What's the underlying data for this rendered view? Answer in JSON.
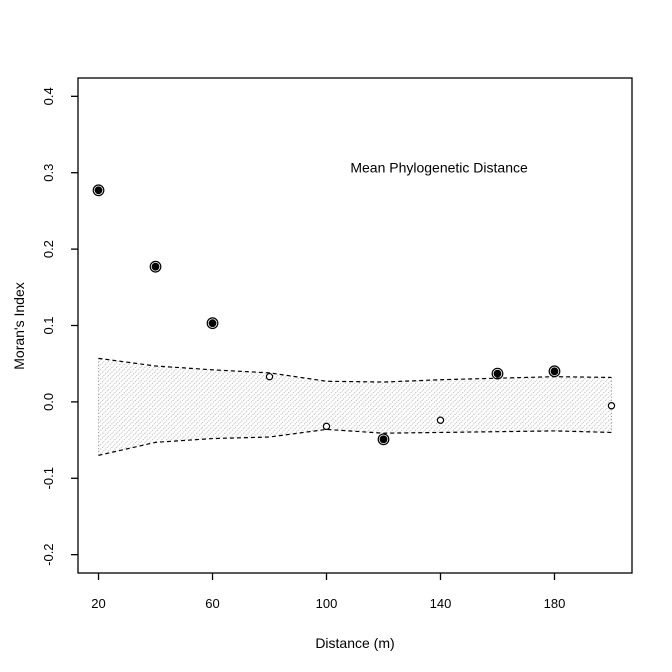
{
  "page": {
    "background": "#ffffff"
  },
  "chart_data": {
    "type": "scatter",
    "title": "Mean Phylogenetic Distance",
    "xlabel": "Distance (m)",
    "ylabel": "Moran's Index",
    "xlim": [
      12.8,
      207.2
    ],
    "ylim": [
      -0.224,
      0.424
    ],
    "x_ticks": [
      "20",
      "60",
      "100",
      "140",
      "180"
    ],
    "y_ticks": [
      "-0.2",
      "-0.1",
      "0.0",
      "0.1",
      "0.2",
      "0.3",
      "0.4"
    ],
    "grid": false,
    "legend": "none",
    "title_pos": {
      "x": 139.5,
      "y": 0.306
    },
    "colors": {
      "foreground": "#000000",
      "background": "#ffffff",
      "hatch": "#a0a0a0"
    },
    "points": [
      {
        "x": 20,
        "y": 0.277,
        "significant": true
      },
      {
        "x": 40,
        "y": 0.177,
        "significant": true
      },
      {
        "x": 60,
        "y": 0.103,
        "significant": true
      },
      {
        "x": 80,
        "y": 0.033,
        "significant": false
      },
      {
        "x": 100,
        "y": -0.032,
        "significant": false
      },
      {
        "x": 120,
        "y": -0.049,
        "significant": true
      },
      {
        "x": 140,
        "y": -0.024,
        "significant": false
      },
      {
        "x": 160,
        "y": 0.037,
        "significant": true
      },
      {
        "x": 180,
        "y": 0.04,
        "significant": true
      },
      {
        "x": 200,
        "y": -0.005,
        "significant": false
      }
    ],
    "envelope": {
      "x": [
        20,
        40,
        60,
        80,
        100,
        120,
        140,
        160,
        180,
        200
      ],
      "upper": [
        0.057,
        0.047,
        0.042,
        0.038,
        0.027,
        0.026,
        0.029,
        0.031,
        0.033,
        0.032
      ],
      "lower": [
        -0.07,
        -0.053,
        -0.048,
        -0.046,
        -0.036,
        -0.041,
        -0.04,
        -0.039,
        -0.038,
        -0.04
      ]
    }
  }
}
